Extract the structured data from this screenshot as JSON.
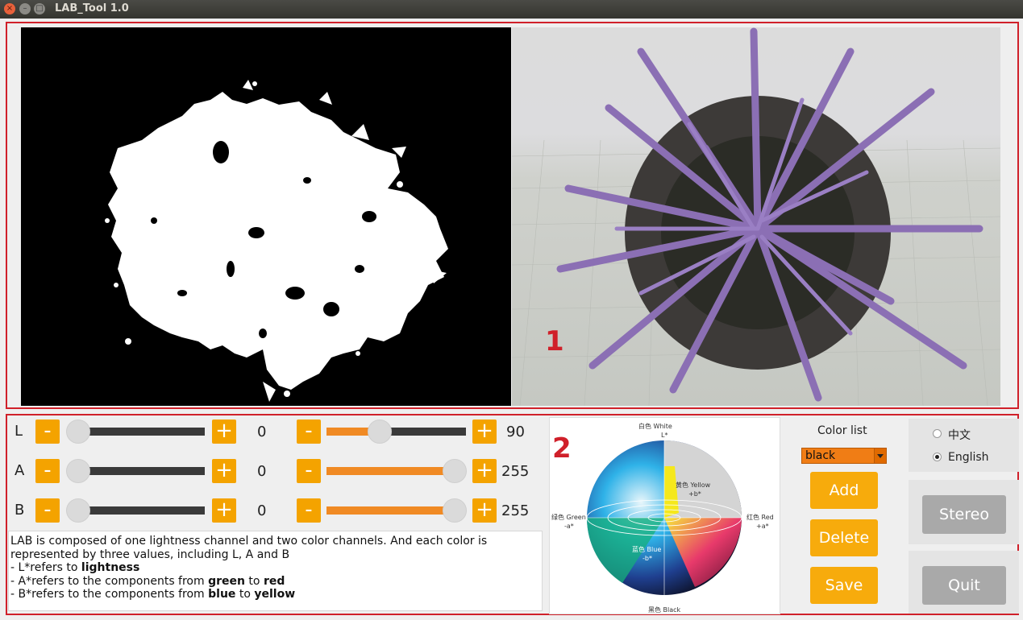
{
  "window": {
    "title": "LAB_Tool 1.0",
    "buttons": {
      "close": "×",
      "minimize": "–",
      "maximize": "□"
    }
  },
  "panel_labels": {
    "display": "1",
    "controls": "2"
  },
  "channels": [
    {
      "name": "L",
      "minus": "-",
      "plus": "+",
      "min_value": "0",
      "max_value": "90"
    },
    {
      "name": "A",
      "minus": "-",
      "plus": "+",
      "min_value": "0",
      "max_value": "255"
    },
    {
      "name": "B",
      "minus": "-",
      "plus": "+",
      "min_value": "0",
      "max_value": "255"
    }
  ],
  "info": {
    "line1": "LAB is composed of one lightness channel and two color channels. And each color is represented by three values, including L, A and B",
    "l_prefix": "- L*refers to ",
    "l_bold": "lightness",
    "a_prefix": "- A*refers to the components from ",
    "a_bold1": "green",
    "a_mid": " to ",
    "a_bold2": "red",
    "b_prefix": "- B*refers to the components from ",
    "b_bold1": "blue",
    "b_mid": " to ",
    "b_bold2": "yellow"
  },
  "sphere": {
    "white": "白色 White",
    "l_axis": "L*",
    "yellow": "黄色 Yellow",
    "plus_b": "+b*",
    "green": "绿色 Green",
    "minus_a": "-a*",
    "red": "红色 Red",
    "plus_a": "+a*",
    "blue": "蓝色 Blue",
    "minus_b": "-b*",
    "black": "黑色 Black"
  },
  "color_list": {
    "title": "Color list",
    "selected": "black",
    "add": "Add",
    "delete": "Delete",
    "save": "Save"
  },
  "language": {
    "chinese": "中文",
    "english": "English",
    "selected": "English"
  },
  "actions": {
    "stereo": "Stereo",
    "quit": "Quit"
  },
  "colors": {
    "accent": "#f4a300",
    "slider_fill": "#f08a24",
    "frame": "#d0202a",
    "disabled_button": "#a9a9a9"
  }
}
